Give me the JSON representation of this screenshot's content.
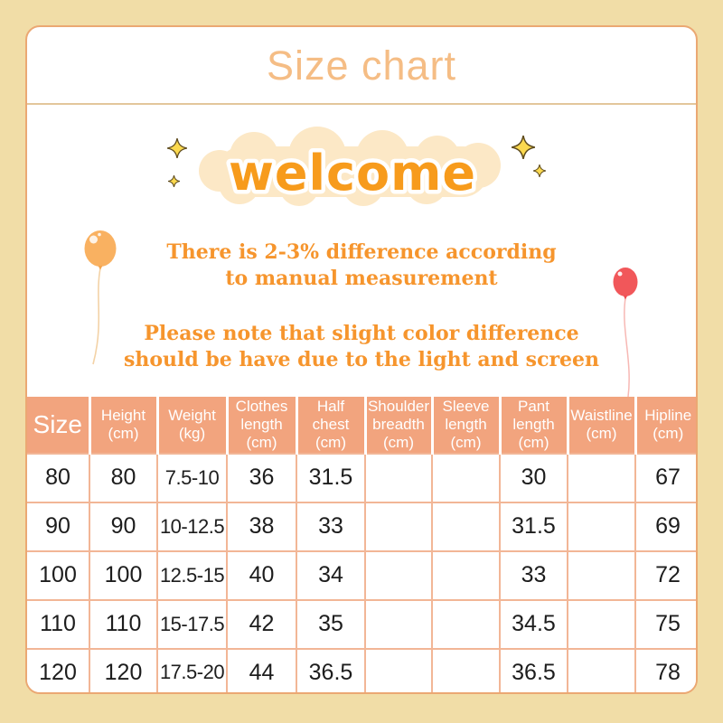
{
  "header": {
    "title": "Size chart"
  },
  "banner": {
    "welcome": "welcome",
    "notes": [
      {
        "line1": "There is 2-3% difference according",
        "line2": "to manual measurement"
      },
      {
        "line1": "Please note that slight color difference",
        "line2": "should be have due to the light and screen"
      }
    ]
  },
  "decorations": {
    "icons": [
      "sparkle-icon",
      "orange-balloon-icon",
      "red-balloon-icon",
      "welcome-cloud"
    ],
    "colors": {
      "page_background": "#f1dda7",
      "card_background": "#ffffff",
      "card_border": "#eba873",
      "title_text": "#f5bd85",
      "cloud": "#fce8c6",
      "welcome_fill": "#f79b1c",
      "welcome_outline": "#ffffff",
      "sparkle_yellow": "#fbd94f",
      "note_text": "#f6952d",
      "balloon_orange": "#f9b161",
      "balloon_red": "#f1575a",
      "table_header_bg": "#f2a47e",
      "table_header_text": "#ffffff",
      "table_border": "#f2b696",
      "table_body_text": "#1d1d1d"
    }
  },
  "size_table": {
    "columns": [
      {
        "label": "Size",
        "unit": ""
      },
      {
        "label": "Height",
        "unit": "(cm)"
      },
      {
        "label": "Weight",
        "unit": "(kg)"
      },
      {
        "label": "Clothes length",
        "unit": "(cm)"
      },
      {
        "label": "Half chest",
        "unit": "(cm)"
      },
      {
        "label": "Shoulder breadth",
        "unit": "(cm)"
      },
      {
        "label": "Sleeve length",
        "unit": "(cm)"
      },
      {
        "label": "Pant length",
        "unit": "(cm)"
      },
      {
        "label": "Waistline",
        "unit": "(cm)"
      },
      {
        "label": "Hipline",
        "unit": "(cm)"
      }
    ],
    "rows": [
      {
        "cells": [
          "80",
          "80",
          "7.5-10",
          "36",
          "31.5",
          "",
          "",
          "30",
          "",
          "67"
        ]
      },
      {
        "cells": [
          "90",
          "90",
          "10-12.5",
          "38",
          "33",
          "",
          "",
          "31.5",
          "",
          "69"
        ]
      },
      {
        "cells": [
          "100",
          "100",
          "12.5-15",
          "40",
          "34",
          "",
          "",
          "33",
          "",
          "72"
        ]
      },
      {
        "cells": [
          "110",
          "110",
          "15-17.5",
          "42",
          "35",
          "",
          "",
          "34.5",
          "",
          "75"
        ]
      },
      {
        "cells": [
          "120",
          "120",
          "17.5-20",
          "44",
          "36.5",
          "",
          "",
          "36.5",
          "",
          "78"
        ]
      }
    ]
  }
}
